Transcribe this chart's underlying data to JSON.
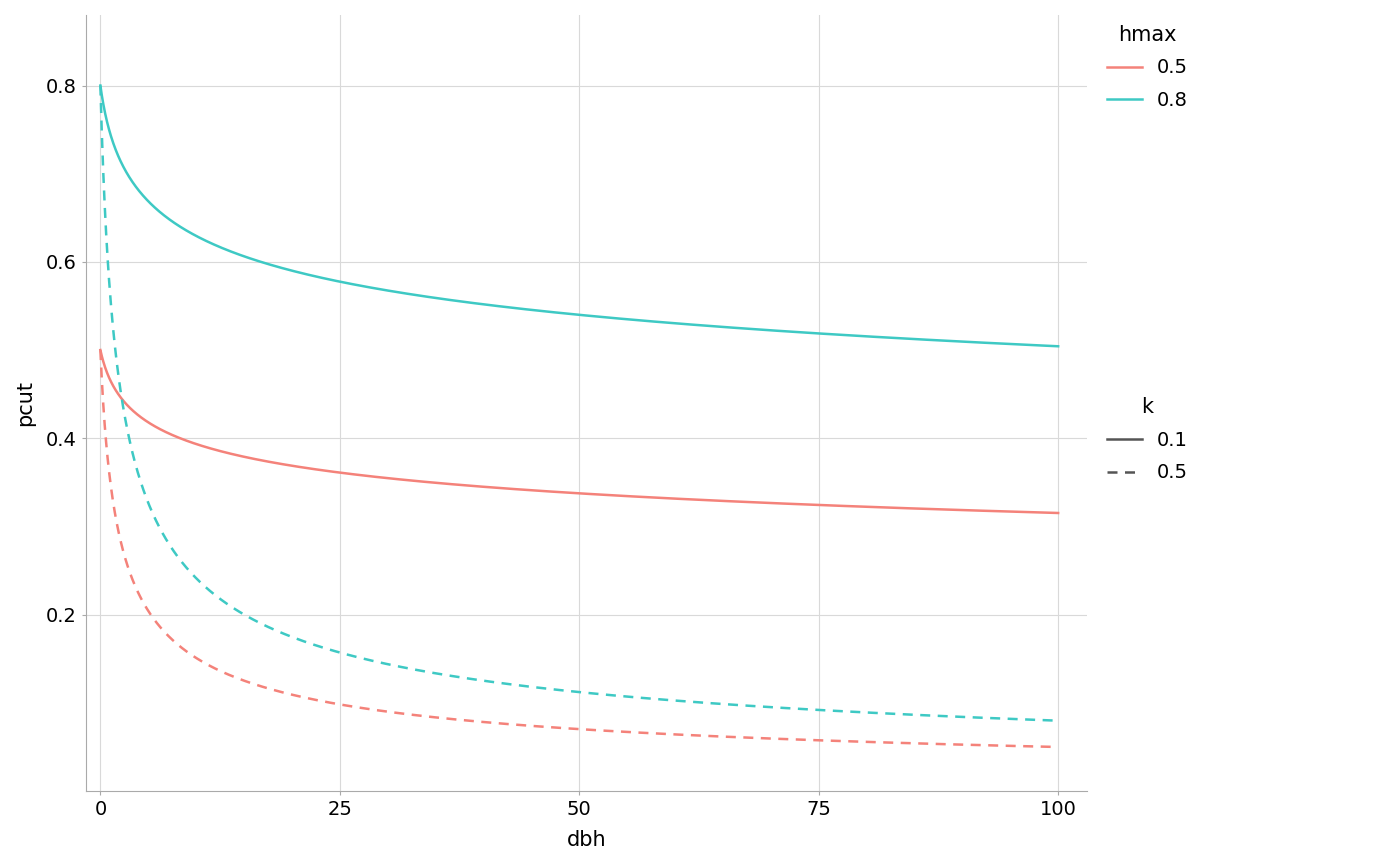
{
  "xlabel": "dbh",
  "ylabel": "pcut",
  "xlim": [
    -1.5,
    103
  ],
  "ylim": [
    0,
    0.88
  ],
  "yticks": [
    0.2,
    0.4,
    0.6,
    0.8
  ],
  "xticks": [
    0,
    25,
    50,
    75,
    100
  ],
  "background_color": "#ffffff",
  "panel_background": "#ffffff",
  "grid_color": "#d9d9d9",
  "series": [
    {
      "hmax": 0.5,
      "k": 0.1,
      "color": "#F4827A",
      "linestyle": "solid"
    },
    {
      "hmax": 0.8,
      "k": 0.1,
      "color": "#3EC9C4",
      "linestyle": "solid"
    },
    {
      "hmax": 0.5,
      "k": 0.5,
      "color": "#F4827A",
      "linestyle": "dashed"
    },
    {
      "hmax": 0.8,
      "k": 0.5,
      "color": "#3EC9C4",
      "linestyle": "dashed"
    }
  ],
  "legend_hmax_colors": [
    "#F4827A",
    "#3EC9C4"
  ],
  "legend_hmax_labels": [
    "0.5",
    "0.8"
  ],
  "legend_k_styles": [
    "solid",
    "dashed"
  ],
  "legend_k_labels": [
    "0.1",
    "0.5"
  ],
  "font_size": 14,
  "axis_label_fontsize": 15,
  "legend_fontsize": 14,
  "line_width": 1.8
}
